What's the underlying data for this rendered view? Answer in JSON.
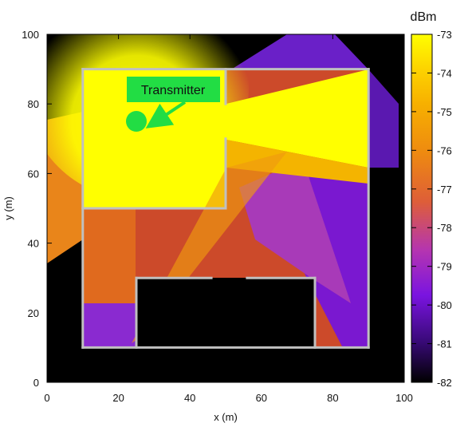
{
  "chart_data": {
    "type": "heatmap",
    "xlabel": "x (m)",
    "ylabel": "y (m)",
    "xlim": [
      0,
      100
    ],
    "ylim": [
      0,
      100
    ],
    "x_ticks": [
      0,
      20,
      40,
      60,
      80,
      100
    ],
    "y_ticks": [
      0,
      20,
      40,
      60,
      80,
      100
    ],
    "colorbar": {
      "label": "dBm",
      "range": [
        -82,
        -73
      ],
      "ticks": [
        -73,
        -74,
        -75,
        -76,
        -77,
        -78,
        -79,
        -80,
        -81,
        -82
      ],
      "colors": [
        "#000000",
        "#3a0a7a",
        "#7a14e0",
        "#b535b0",
        "#de5e38",
        "#ee8a10",
        "#f7b000",
        "#fdd300",
        "#ffff00"
      ]
    },
    "transmitter": {
      "x": 25,
      "y": 75,
      "label": "Transmitter"
    },
    "walls": [
      [
        [
          10,
          10
        ],
        [
          10,
          90
        ]
      ],
      [
        [
          10,
          90
        ],
        [
          90,
          90
        ]
      ],
      [
        [
          90,
          90
        ],
        [
          90,
          10
        ]
      ],
      [
        [
          90,
          10
        ],
        [
          10,
          10
        ]
      ],
      [
        [
          10,
          50
        ],
        [
          50,
          50
        ]
      ],
      [
        [
          50,
          50
        ],
        [
          50,
          70
        ]
      ],
      [
        [
          50,
          80
        ],
        [
          50,
          90
        ]
      ],
      [
        [
          25,
          10
        ],
        [
          25,
          30
        ]
      ],
      [
        [
          25,
          30
        ],
        [
          46,
          30
        ]
      ],
      [
        [
          56,
          30
        ],
        [
          75,
          30
        ]
      ],
      [
        [
          75,
          30
        ],
        [
          75,
          10
        ]
      ]
    ],
    "grid": false,
    "legend": "none"
  }
}
